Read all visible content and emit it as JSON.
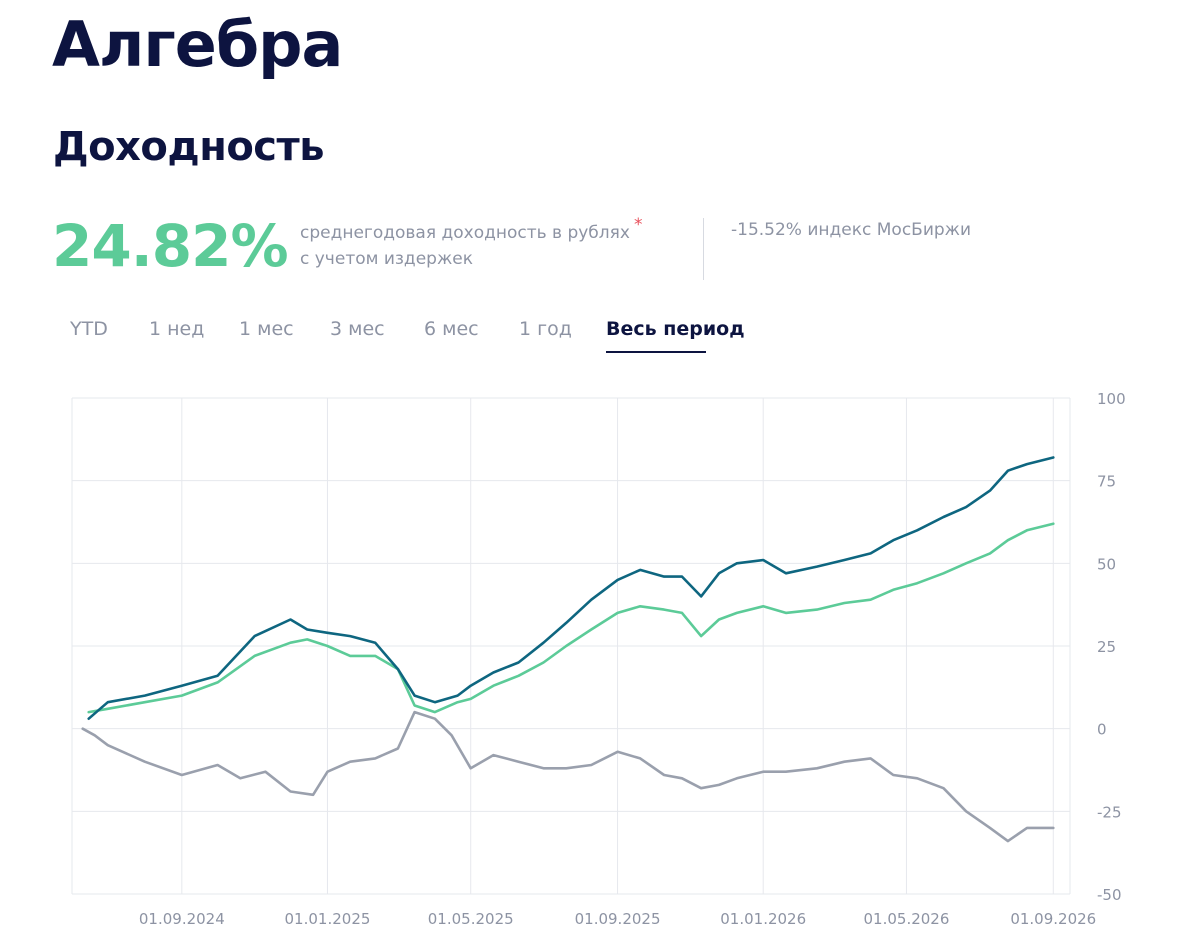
{
  "header": {
    "fund_name": "Алгебра",
    "section": "Доходность"
  },
  "summary": {
    "yield_value": "24.82%",
    "yield_desc_line1": "среднегодовая доходность в рублях",
    "yield_desc_line2": "с учетом издержек",
    "asterisk": "*",
    "index_note": "-15.52% индекс МосБиржи"
  },
  "tabs": [
    "YTD",
    "1 нед",
    "1 мес",
    "3 мес",
    "6 мес",
    "1 год",
    "Весь период"
  ],
  "active_tab": "Весь период",
  "colors": {
    "fund": "#0e6680",
    "fund_alt": "#5ccb98",
    "index": "#9aa0ad",
    "grid": "#e6e8ed",
    "title": "#0d1440",
    "accent": "#5ccb98"
  },
  "chart_data": {
    "type": "line",
    "x_tick_labels": [
      "01.09.2024",
      "01.01.2025",
      "01.05.2025",
      "01.09.2025",
      "01.01.2026",
      "01.05.2026",
      "01.09.2026"
    ],
    "y_ticks": [
      100,
      75,
      50,
      25,
      0,
      -25,
      -50
    ],
    "ylim": [
      -50,
      100
    ],
    "xlim": [
      "2024-06-01",
      "2026-09-15"
    ],
    "grid": true,
    "series": [
      {
        "color": "#0e6680",
        "points": [
          [
            "2024-06-15",
            3
          ],
          [
            "2024-07-01",
            8
          ],
          [
            "2024-08-01",
            10
          ],
          [
            "2024-09-01",
            13
          ],
          [
            "2024-10-01",
            16
          ],
          [
            "2024-11-01",
            28
          ],
          [
            "2024-12-01",
            33
          ],
          [
            "2024-12-15",
            30
          ],
          [
            "2025-01-01",
            29
          ],
          [
            "2025-01-20",
            28
          ],
          [
            "2025-02-10",
            26
          ],
          [
            "2025-03-01",
            18
          ],
          [
            "2025-03-15",
            10
          ],
          [
            "2025-04-01",
            8
          ],
          [
            "2025-04-20",
            10
          ],
          [
            "2025-05-01",
            13
          ],
          [
            "2025-05-20",
            17
          ],
          [
            "2025-06-10",
            20
          ],
          [
            "2025-07-01",
            26
          ],
          [
            "2025-07-20",
            32
          ],
          [
            "2025-08-10",
            39
          ],
          [
            "2025-09-01",
            45
          ],
          [
            "2025-09-20",
            48
          ],
          [
            "2025-10-10",
            46
          ],
          [
            "2025-10-25",
            46
          ],
          [
            "2025-11-10",
            40
          ],
          [
            "2025-11-25",
            47
          ],
          [
            "2025-12-10",
            50
          ],
          [
            "2026-01-01",
            51
          ],
          [
            "2026-01-20",
            47
          ],
          [
            "2026-02-15",
            49
          ],
          [
            "2026-03-10",
            51
          ],
          [
            "2026-04-01",
            53
          ],
          [
            "2026-04-20",
            57
          ],
          [
            "2026-05-10",
            60
          ],
          [
            "2026-06-01",
            64
          ],
          [
            "2026-06-20",
            67
          ],
          [
            "2026-07-10",
            72
          ],
          [
            "2026-07-25",
            78
          ],
          [
            "2026-08-10",
            80
          ],
          [
            "2026-09-01",
            82
          ]
        ]
      },
      {
        "color": "#5ccb98",
        "points": [
          [
            "2024-06-15",
            5
          ],
          [
            "2024-07-01",
            6
          ],
          [
            "2024-08-01",
            8
          ],
          [
            "2024-09-01",
            10
          ],
          [
            "2024-10-01",
            14
          ],
          [
            "2024-11-01",
            22
          ],
          [
            "2024-12-01",
            26
          ],
          [
            "2024-12-15",
            27
          ],
          [
            "2025-01-01",
            25
          ],
          [
            "2025-01-20",
            22
          ],
          [
            "2025-02-10",
            22
          ],
          [
            "2025-03-01",
            18
          ],
          [
            "2025-03-15",
            7
          ],
          [
            "2025-04-01",
            5
          ],
          [
            "2025-04-20",
            8
          ],
          [
            "2025-05-01",
            9
          ],
          [
            "2025-05-20",
            13
          ],
          [
            "2025-06-10",
            16
          ],
          [
            "2025-07-01",
            20
          ],
          [
            "2025-07-20",
            25
          ],
          [
            "2025-08-10",
            30
          ],
          [
            "2025-09-01",
            35
          ],
          [
            "2025-09-20",
            37
          ],
          [
            "2025-10-10",
            36
          ],
          [
            "2025-10-25",
            35
          ],
          [
            "2025-11-10",
            28
          ],
          [
            "2025-11-25",
            33
          ],
          [
            "2025-12-10",
            35
          ],
          [
            "2026-01-01",
            37
          ],
          [
            "2026-01-20",
            35
          ],
          [
            "2026-02-15",
            36
          ],
          [
            "2026-03-10",
            38
          ],
          [
            "2026-04-01",
            39
          ],
          [
            "2026-04-20",
            42
          ],
          [
            "2026-05-10",
            44
          ],
          [
            "2026-06-01",
            47
          ],
          [
            "2026-06-20",
            50
          ],
          [
            "2026-07-10",
            53
          ],
          [
            "2026-07-25",
            57
          ],
          [
            "2026-08-10",
            60
          ],
          [
            "2026-09-01",
            62
          ]
        ]
      },
      {
        "color": "#9aa0ad",
        "points": [
          [
            "2024-06-10",
            0
          ],
          [
            "2024-06-20",
            -2
          ],
          [
            "2024-07-01",
            -5
          ],
          [
            "2024-08-01",
            -10
          ],
          [
            "2024-09-01",
            -14
          ],
          [
            "2024-10-01",
            -11
          ],
          [
            "2024-10-20",
            -15
          ],
          [
            "2024-11-10",
            -13
          ],
          [
            "2024-12-01",
            -19
          ],
          [
            "2024-12-20",
            -20
          ],
          [
            "2025-01-01",
            -13
          ],
          [
            "2025-01-20",
            -10
          ],
          [
            "2025-02-10",
            -9
          ],
          [
            "2025-03-01",
            -6
          ],
          [
            "2025-03-15",
            5
          ],
          [
            "2025-04-01",
            3
          ],
          [
            "2025-04-15",
            -2
          ],
          [
            "2025-05-01",
            -12
          ],
          [
            "2025-05-20",
            -8
          ],
          [
            "2025-06-10",
            -10
          ],
          [
            "2025-07-01",
            -12
          ],
          [
            "2025-07-20",
            -12
          ],
          [
            "2025-08-10",
            -11
          ],
          [
            "2025-09-01",
            -7
          ],
          [
            "2025-09-20",
            -9
          ],
          [
            "2025-10-10",
            -14
          ],
          [
            "2025-10-25",
            -15
          ],
          [
            "2025-11-10",
            -18
          ],
          [
            "2025-11-25",
            -17
          ],
          [
            "2025-12-10",
            -15
          ],
          [
            "2026-01-01",
            -13
          ],
          [
            "2026-01-20",
            -13
          ],
          [
            "2026-02-15",
            -12
          ],
          [
            "2026-03-10",
            -10
          ],
          [
            "2026-04-01",
            -9
          ],
          [
            "2026-04-20",
            -14
          ],
          [
            "2026-05-10",
            -15
          ],
          [
            "2026-06-01",
            -18
          ],
          [
            "2026-06-20",
            -25
          ],
          [
            "2026-07-10",
            -30
          ],
          [
            "2026-07-25",
            -34
          ],
          [
            "2026-08-10",
            -30
          ],
          [
            "2026-09-01",
            -30
          ]
        ]
      }
    ]
  }
}
